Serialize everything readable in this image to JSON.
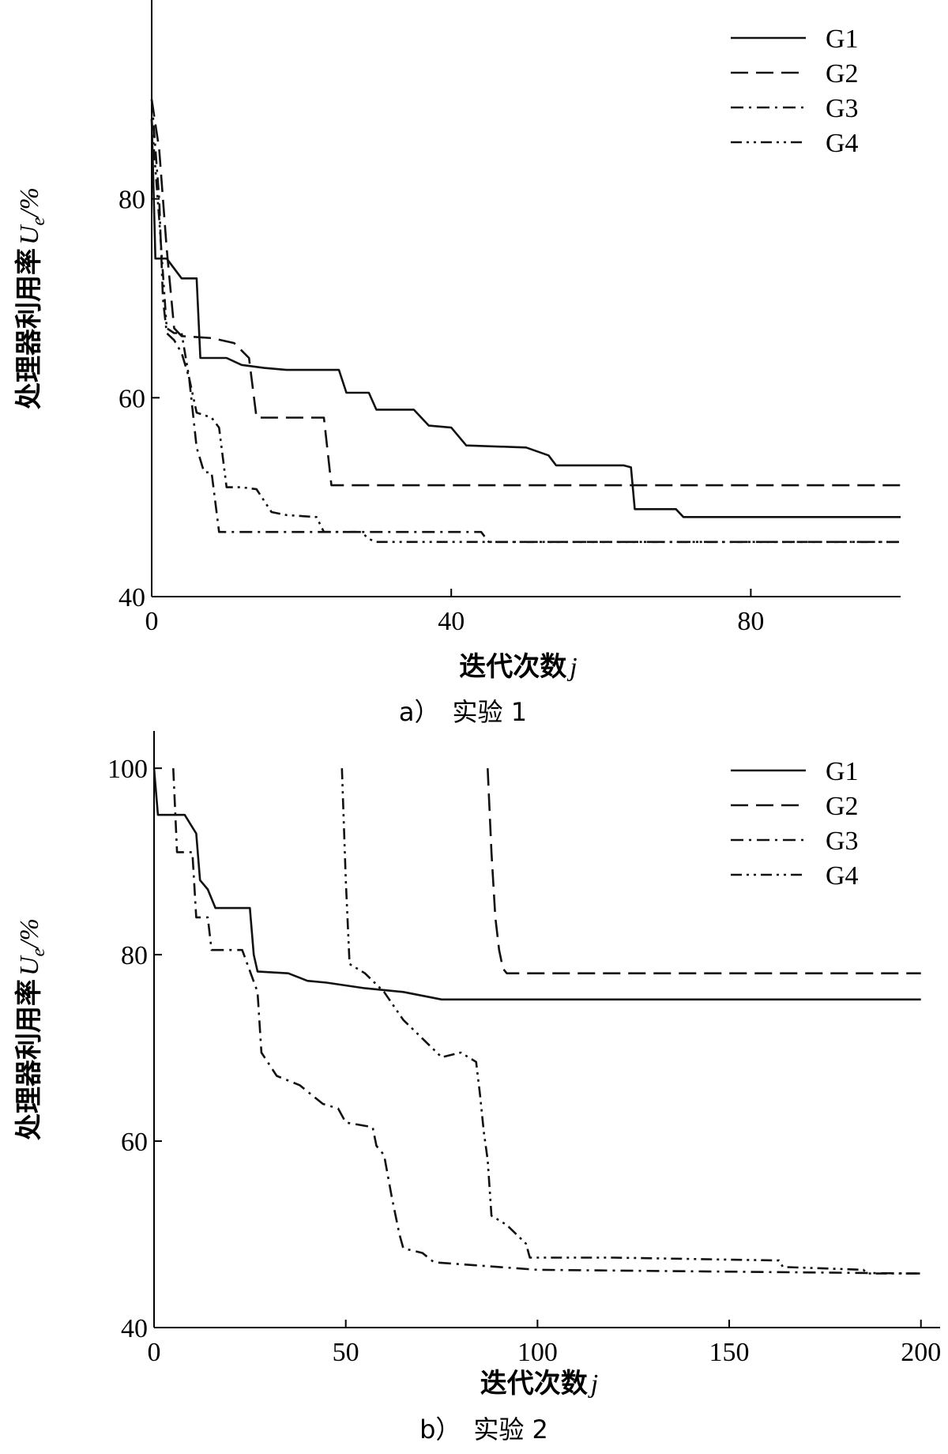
{
  "chart_data": [
    {
      "type": "line",
      "caption": "a）　实验 1",
      "xlabel": "迭代次数",
      "xlabel_var": "j",
      "ylabel": "处理器利用率",
      "ylabel_var": "U",
      "ylabel_sub": "e",
      "ylabel_unit": "/%",
      "xlim": [
        0,
        100
      ],
      "ylim": [
        40,
        100
      ],
      "xticks": [
        0,
        40,
        80
      ],
      "yticks": [
        40,
        60,
        80
      ],
      "grid": false,
      "legend_position": "top-right",
      "series": [
        {
          "name": "G1",
          "dash": "solid",
          "points": [
            [
              0,
              88
            ],
            [
              0.5,
              74
            ],
            [
              1,
              74
            ],
            [
              2,
              74
            ],
            [
              3,
              73
            ],
            [
              4,
              72
            ],
            [
              5,
              72
            ],
            [
              6,
              72
            ],
            [
              6.5,
              64
            ],
            [
              10,
              64
            ],
            [
              12,
              63.3
            ],
            [
              15,
              63
            ],
            [
              18,
              62.8
            ],
            [
              25,
              62.8
            ],
            [
              26,
              60.5
            ],
            [
              29,
              60.5
            ],
            [
              30,
              58.8
            ],
            [
              35,
              58.8
            ],
            [
              37,
              57.2
            ],
            [
              40,
              57
            ],
            [
              42,
              55.2
            ],
            [
              50,
              55
            ],
            [
              53,
              54.2
            ],
            [
              54,
              53.2
            ],
            [
              63,
              53.2
            ],
            [
              64,
              53
            ],
            [
              64.5,
              48.8
            ],
            [
              70,
              48.8
            ],
            [
              71,
              48
            ],
            [
              100,
              48
            ]
          ]
        },
        {
          "name": "G2",
          "dash": "long-dash",
          "points": [
            [
              0,
              90
            ],
            [
              1,
              85
            ],
            [
              2,
              75
            ],
            [
              3,
              67
            ],
            [
              4,
              66.2
            ],
            [
              8,
              66
            ],
            [
              11,
              65.5
            ],
            [
              13,
              64
            ],
            [
              14,
              58
            ],
            [
              23,
              58
            ],
            [
              24,
              51.2
            ],
            [
              100,
              51.2
            ]
          ]
        },
        {
          "name": "G3",
          "dash": "dash-dot",
          "points": [
            [
              0,
              90
            ],
            [
              1,
              80
            ],
            [
              1.5,
              70
            ],
            [
              2,
              66.5
            ],
            [
              3,
              65.8
            ],
            [
              4,
              64.5
            ],
            [
              5,
              62
            ],
            [
              6,
              55
            ],
            [
              7,
              52.5
            ],
            [
              8,
              52.5
            ],
            [
              9,
              46.5
            ],
            [
              44,
              46.5
            ],
            [
              45,
              45.5
            ],
            [
              100,
              45.5
            ]
          ]
        },
        {
          "name": "G4",
          "dash": "dash-dot-dot",
          "points": [
            [
              0,
              88
            ],
            [
              1,
              78
            ],
            [
              2,
              67
            ],
            [
              3,
              66.5
            ],
            [
              4,
              66.5
            ],
            [
              5,
              62
            ],
            [
              6,
              58.5
            ],
            [
              8,
              58
            ],
            [
              9,
              57
            ],
            [
              10,
              51
            ],
            [
              12,
              51
            ],
            [
              14,
              50.8
            ],
            [
              16,
              48.5
            ],
            [
              18,
              48.2
            ],
            [
              22,
              48
            ],
            [
              23,
              46.5
            ],
            [
              28,
              46.5
            ],
            [
              29,
              45.8
            ],
            [
              30,
              45.5
            ],
            [
              100,
              45.5
            ]
          ]
        }
      ]
    },
    {
      "type": "line",
      "caption": "b）　实验 2",
      "xlabel": "迭代次数",
      "xlabel_var": "j",
      "ylabel": "处理器利用率",
      "ylabel_var": "U",
      "ylabel_sub": "e",
      "ylabel_unit": "/%",
      "xlim": [
        0,
        205
      ],
      "ylim": [
        40,
        104
      ],
      "xticks": [
        0,
        50,
        100,
        150,
        200
      ],
      "yticks": [
        40,
        60,
        80,
        100
      ],
      "grid": false,
      "legend_position": "top-right",
      "series": [
        {
          "name": "G1",
          "dash": "solid",
          "points": [
            [
              0,
              100
            ],
            [
              1,
              95
            ],
            [
              8,
              95
            ],
            [
              11,
              93
            ],
            [
              12,
              88
            ],
            [
              14,
              87
            ],
            [
              16,
              85
            ],
            [
              25,
              85
            ],
            [
              26,
              80
            ],
            [
              27,
              78.2
            ],
            [
              35,
              78
            ],
            [
              40,
              77.2
            ],
            [
              45,
              77
            ],
            [
              55,
              76.4
            ],
            [
              65,
              76
            ],
            [
              75,
              75.2
            ],
            [
              200,
              75.2
            ]
          ]
        },
        {
          "name": "G2",
          "dash": "long-dash",
          "points": [
            [
              87,
              100
            ],
            [
              88,
              91
            ],
            [
              89,
              84
            ],
            [
              90,
              80.5
            ],
            [
              91,
              78.5
            ],
            [
              92,
              78
            ],
            [
              200,
              78
            ]
          ]
        },
        {
          "name": "G3",
          "dash": "dash-dot",
          "points": [
            [
              5,
              100
            ],
            [
              6,
              91
            ],
            [
              10,
              91
            ],
            [
              11,
              84
            ],
            [
              14,
              84
            ],
            [
              15,
              80.5
            ],
            [
              18,
              80.5
            ],
            [
              23,
              80.5
            ],
            [
              27,
              76
            ],
            [
              28,
              69.5
            ],
            [
              32,
              67
            ],
            [
              38,
              66
            ],
            [
              44,
              64
            ],
            [
              48,
              63.5
            ],
            [
              50,
              62
            ],
            [
              57,
              61.5
            ],
            [
              58,
              59.5
            ],
            [
              60,
              58.5
            ],
            [
              62,
              54
            ],
            [
              64,
              50
            ],
            [
              65,
              48.5
            ],
            [
              70,
              48
            ],
            [
              73,
              47
            ],
            [
              100,
              46.2
            ],
            [
              200,
              45.8
            ]
          ]
        },
        {
          "name": "G4",
          "dash": "dash-dot-dot",
          "points": [
            [
              49,
              100
            ],
            [
              50,
              88
            ],
            [
              51,
              79
            ],
            [
              55,
              78
            ],
            [
              60,
              76
            ],
            [
              65,
              73
            ],
            [
              70,
              71
            ],
            [
              75,
              69
            ],
            [
              80,
              69.5
            ],
            [
              84,
              68.5
            ],
            [
              85,
              65
            ],
            [
              86,
              61
            ],
            [
              87,
              58
            ],
            [
              88,
              52
            ],
            [
              92,
              51
            ],
            [
              97,
              49
            ],
            [
              98,
              47.5
            ],
            [
              120,
              47.5
            ],
            [
              163,
              47.2
            ],
            [
              164,
              46.5
            ],
            [
              185,
              46.2
            ],
            [
              186,
              45.8
            ],
            [
              200,
              45.8
            ]
          ]
        }
      ]
    }
  ]
}
